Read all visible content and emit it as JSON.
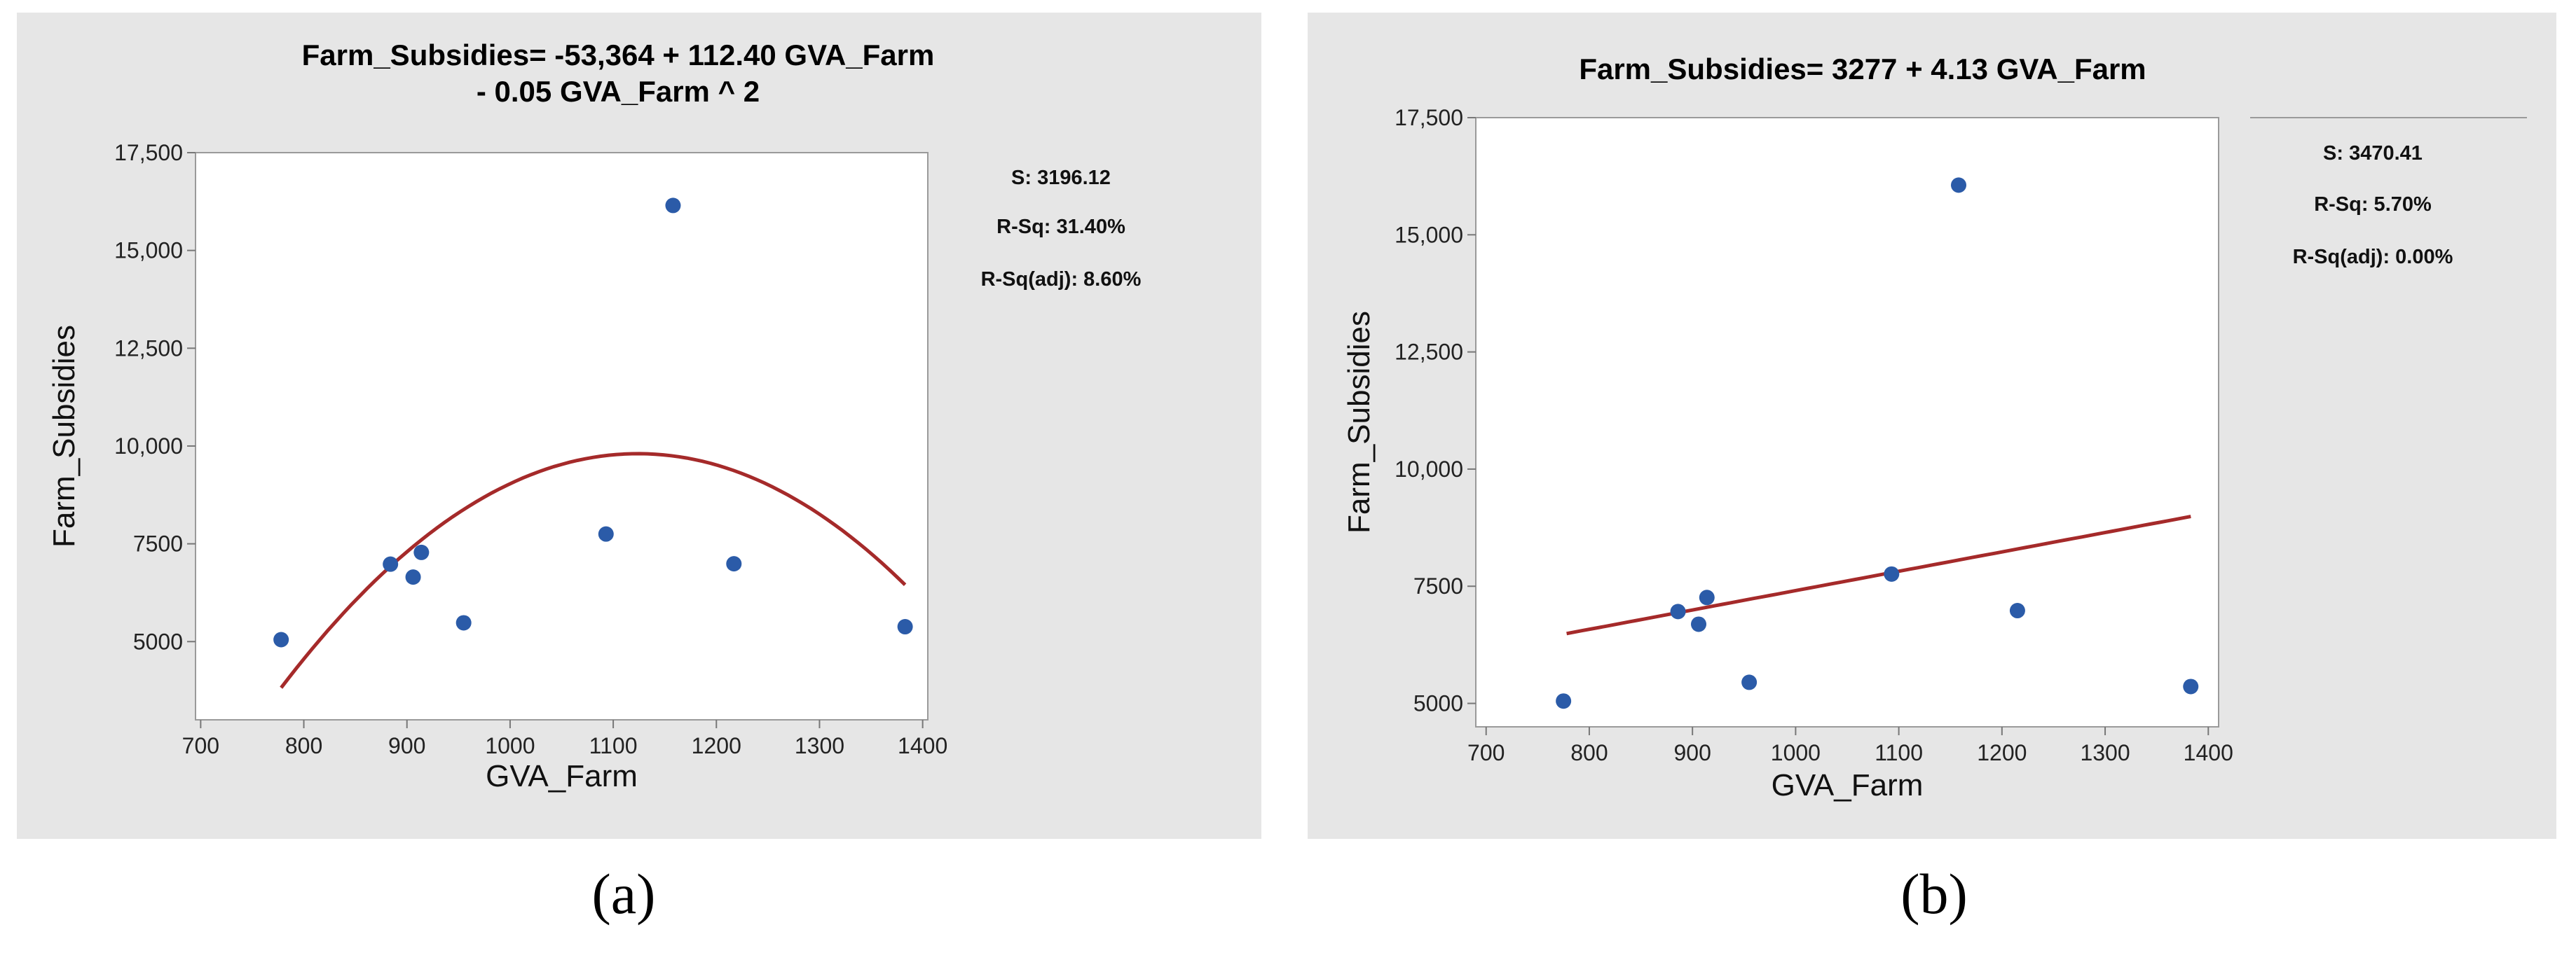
{
  "colors": {
    "panel_bg": "#e6e6e6",
    "plot_bg": "#ffffff",
    "point": "#2b5ba8",
    "fit_line": "#a52a2a"
  },
  "captions": [
    "(a)",
    "(b)"
  ],
  "chart_data": [
    {
      "type": "scatter",
      "title_lines": [
        "Farm_Subsidies= -53,364 + 112.40 GVA_Farm",
        "- 0.05 GVA_Farm ^ 2"
      ],
      "xlabel": "GVA_Farm",
      "ylabel": "Farm_Subsidies",
      "xlim": [
        695,
        1405
      ],
      "ylim": [
        3000,
        17500
      ],
      "xticks": [
        700,
        800,
        900,
        1000,
        1100,
        1200,
        1300,
        1400
      ],
      "xtick_labels": [
        "700",
        "800",
        "900",
        "1000",
        "1100",
        "1200",
        "1300",
        "1400"
      ],
      "yticks": [
        5000,
        7500,
        10000,
        12500,
        15000,
        17500
      ],
      "ytick_labels": [
        "5000",
        "7500",
        "10,000",
        "12,500",
        "15,000",
        "17,500"
      ],
      "grid": false,
      "points": {
        "x": [
          778,
          884,
          906,
          914,
          955,
          1093,
          1158,
          1217,
          1383
        ],
        "y": [
          5050,
          6980,
          6650,
          7280,
          5480,
          7750,
          16150,
          6990,
          5380
        ]
      },
      "fit": {
        "model": "quadratic",
        "c0": -53364,
        "c1": 112.4,
        "c2": -0.05,
        "x_range": [
          778,
          1383
        ]
      },
      "stats": [
        "S: 3196.12",
        "R-Sq: 31.40%",
        "R-Sq(adj): 8.60%"
      ]
    },
    {
      "type": "scatter",
      "title_lines": [
        "Farm_Subsidies= 3277 + 4.13 GVA_Farm"
      ],
      "xlabel": "GVA_Farm",
      "ylabel": "Farm_Subsidies",
      "xlim": [
        690,
        1410
      ],
      "ylim": [
        4500,
        17500
      ],
      "xticks": [
        700,
        800,
        900,
        1000,
        1100,
        1200,
        1300,
        1400
      ],
      "xtick_labels": [
        "700",
        "800",
        "900",
        "1000",
        "1100",
        "1200",
        "1300",
        "1400"
      ],
      "yticks": [
        5000,
        7500,
        10000,
        12500,
        15000,
        17500
      ],
      "ytick_labels": [
        "5000",
        "7500",
        "10,000",
        "12,500",
        "15,000",
        "17,500"
      ],
      "grid": false,
      "points": {
        "x": [
          775,
          886,
          906,
          914,
          955,
          1093,
          1158,
          1215,
          1383
        ],
        "y": [
          5050,
          6960,
          6690,
          7260,
          5450,
          7760,
          16060,
          6980,
          5360
        ]
      },
      "fit": {
        "model": "linear",
        "c0": 3277,
        "c1": 4.13,
        "c2": 0,
        "x_range": [
          778,
          1383
        ]
      },
      "stats": [
        "S: 3470.41",
        "R-Sq: 5.70%",
        "R-Sq(adj): 0.00%"
      ]
    }
  ]
}
